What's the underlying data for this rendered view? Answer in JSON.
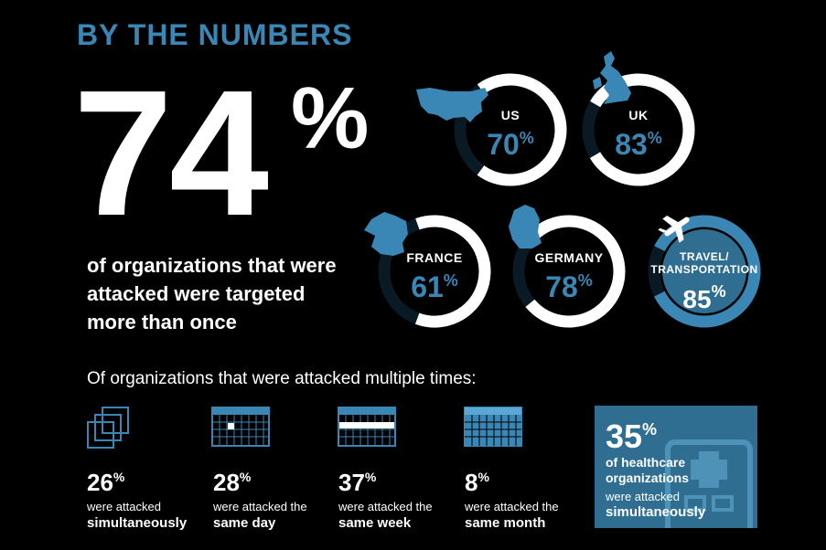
{
  "header": {
    "title": "BY THE NUMBERS"
  },
  "colors": {
    "accent": "#3a86b4",
    "ring_track": "#0a1a24",
    "ring_fill": "#ffffff",
    "panel": "#2f6e90",
    "background": "#000000"
  },
  "main_stat": {
    "value": "74",
    "unit": "%",
    "caption_lines": [
      "of organizations that were",
      "attacked were targeted",
      "more than once"
    ]
  },
  "regions": [
    {
      "label": "US",
      "value": "70",
      "unit": "%",
      "fraction": 0.7,
      "icon": "usa-map-icon"
    },
    {
      "label": "UK",
      "value": "83",
      "unit": "%",
      "fraction": 0.83,
      "icon": "uk-map-icon"
    },
    {
      "label": "FRANCE",
      "value": "61",
      "unit": "%",
      "fraction": 0.61,
      "icon": "france-map-icon"
    },
    {
      "label": "GERMANY",
      "value": "78",
      "unit": "%",
      "fraction": 0.78,
      "icon": "germany-map-icon"
    },
    {
      "label_lines": [
        "TRAVEL/",
        "TRANSPORTATION"
      ],
      "value": "85",
      "unit": "%",
      "fraction": 0.85,
      "icon": "airplane-icon"
    }
  ],
  "multi": {
    "title": "Of organizations that were attacked multiple times:",
    "items": [
      {
        "value": "26",
        "unit": "%",
        "line1": "were attacked",
        "line2": "simultaneously",
        "icon": "overlapping-squares-icon"
      },
      {
        "value": "28",
        "unit": "%",
        "line1": "were attacked the",
        "line2": "same day",
        "icon": "calendar-day-icon"
      },
      {
        "value": "37",
        "unit": "%",
        "line1": "were attacked the",
        "line2": "same week",
        "icon": "calendar-week-icon"
      },
      {
        "value": "8",
        "unit": "%",
        "line1": "were attacked the",
        "line2": "same month",
        "icon": "calendar-month-icon"
      }
    ]
  },
  "healthcare": {
    "value": "35",
    "unit": "%",
    "bold_lines": [
      "of healthcare",
      "organizations"
    ],
    "line3": "were attacked",
    "line4": "simultaneously",
    "icon": "hospital-icon"
  }
}
